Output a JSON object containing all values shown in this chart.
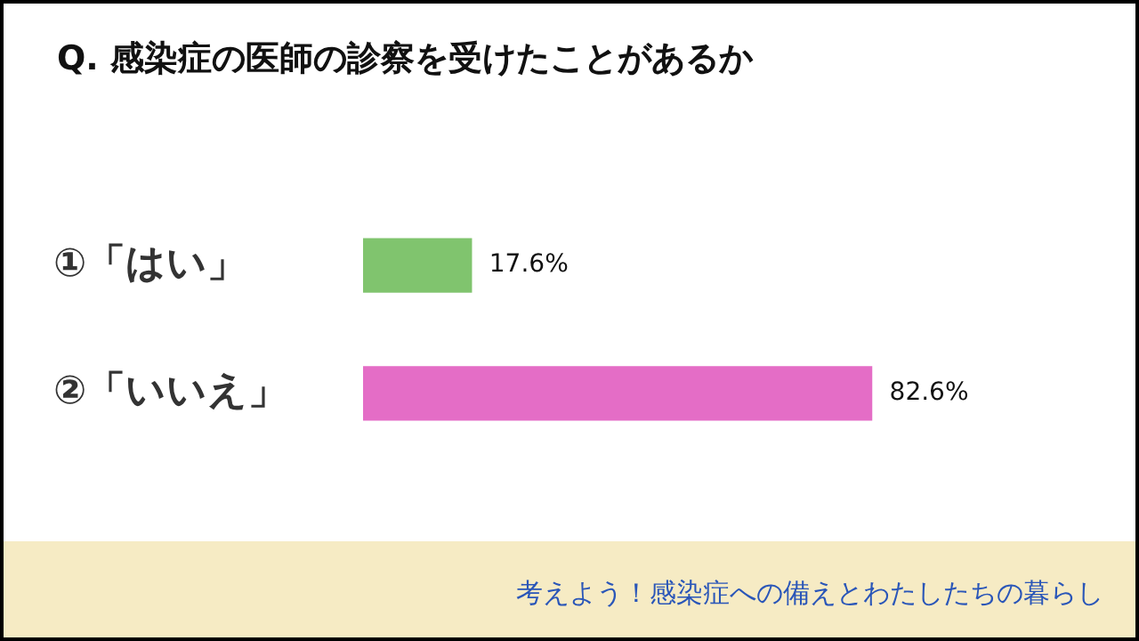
{
  "chart_data": {
    "type": "bar",
    "orientation": "horizontal",
    "title": "Q. 感染症の医師の診察を受けたことがあるか",
    "categories": [
      "①「はい」",
      "②「いいえ」"
    ],
    "values": [
      17.6,
      82.6
    ],
    "colors": [
      "#80c46e",
      "#e46dc6"
    ],
    "value_labels": [
      "17.6%",
      "82.6%"
    ],
    "legend": false,
    "annotations": [
      "考えよう！感染症への備えとわたしたちの暮らし"
    ]
  }
}
